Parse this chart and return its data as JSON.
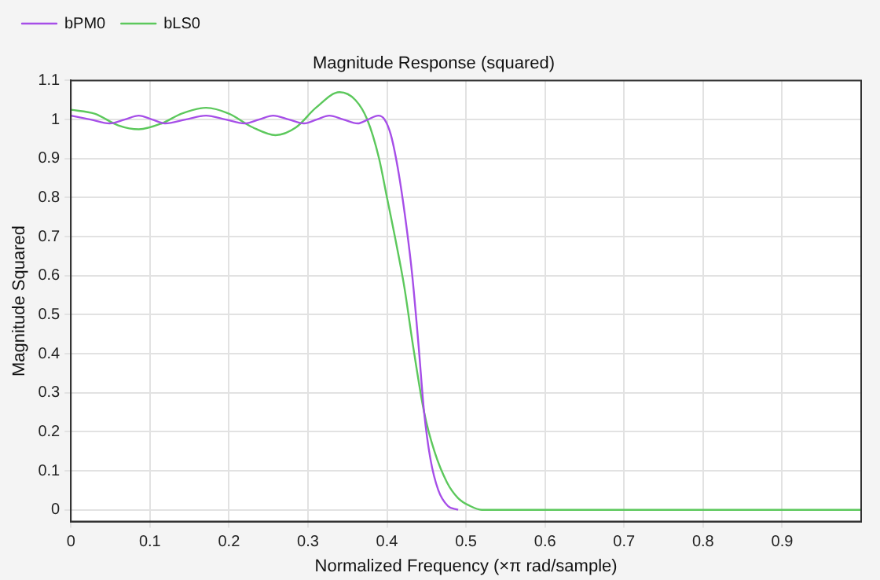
{
  "chart_data": {
    "type": "line",
    "title": "Magnitude Response (squared)",
    "xlabel": "Normalized Frequency (×π rad/sample)",
    "ylabel": "Magnitude Squared",
    "xlim": [
      0,
      1
    ],
    "xticks": [
      0,
      0.1,
      0.2,
      0.3,
      0.4,
      0.5,
      0.6,
      0.7,
      0.8,
      0.9
    ],
    "ylim": [
      -0.03,
      1.1
    ],
    "yticks": [
      0,
      0.1,
      0.2,
      0.3,
      0.4,
      0.5,
      0.6,
      0.7,
      0.8,
      0.9,
      1,
      1.1
    ],
    "grid": true,
    "legend": "top left",
    "marker": "none",
    "line_style": "solid",
    "series": [
      {
        "name": "bPM0",
        "color": "#a64ee8",
        "x": [
          0,
          0.025,
          0.049,
          0.068,
          0.086,
          0.103,
          0.119,
          0.145,
          0.171,
          0.196,
          0.22,
          0.238,
          0.256,
          0.276,
          0.295,
          0.311,
          0.327,
          0.345,
          0.363,
          0.376,
          0.389,
          0.397,
          0.405,
          0.415,
          0.425,
          0.432,
          0.44,
          0.447,
          0.455,
          0.465,
          0.477,
          0.49
        ],
        "values": [
          1.01,
          1.0,
          0.99,
          1.0,
          1.01,
          1.0,
          0.99,
          1.0,
          1.01,
          1.0,
          0.99,
          1.0,
          1.01,
          1.0,
          0.99,
          1.0,
          1.01,
          1.0,
          0.99,
          1.0,
          1.01,
          1.0,
          0.96,
          0.86,
          0.72,
          0.6,
          0.42,
          0.25,
          0.13,
          0.05,
          0.01,
          0
        ]
      },
      {
        "name": "bLS0",
        "color": "#5cc85c",
        "x": [
          0,
          0.03,
          0.06,
          0.086,
          0.115,
          0.14,
          0.171,
          0.2,
          0.23,
          0.259,
          0.285,
          0.31,
          0.34,
          0.36,
          0.375,
          0.39,
          0.4,
          0.41,
          0.422,
          0.433,
          0.447,
          0.46,
          0.476,
          0.49,
          0.505,
          0.52,
          1
        ],
        "values": [
          1.025,
          1.015,
          0.985,
          0.975,
          0.99,
          1.015,
          1.03,
          1.015,
          0.98,
          0.96,
          0.98,
          1.03,
          1.07,
          1.05,
          1.0,
          0.9,
          0.8,
          0.7,
          0.57,
          0.42,
          0.25,
          0.15,
          0.07,
          0.03,
          0.01,
          0,
          0
        ]
      }
    ]
  }
}
